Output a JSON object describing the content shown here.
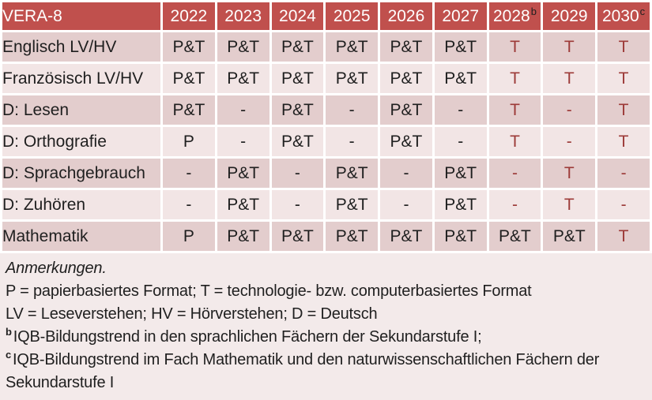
{
  "table": {
    "title": "VERA-8",
    "year_columns": [
      {
        "label": "2022",
        "superscript": ""
      },
      {
        "label": "2023",
        "superscript": ""
      },
      {
        "label": "2024",
        "superscript": ""
      },
      {
        "label": "2025",
        "superscript": ""
      },
      {
        "label": "2026",
        "superscript": ""
      },
      {
        "label": "2027",
        "superscript": ""
      },
      {
        "label": "2028",
        "superscript": "b"
      },
      {
        "label": "2029",
        "superscript": ""
      },
      {
        "label": "2030",
        "superscript": "c"
      }
    ],
    "rows": [
      {
        "label": "Englisch LV/HV",
        "cells": [
          {
            "text": "P&T",
            "highlight": false
          },
          {
            "text": "P&T",
            "highlight": false
          },
          {
            "text": "P&T",
            "highlight": false
          },
          {
            "text": "P&T",
            "highlight": false
          },
          {
            "text": "P&T",
            "highlight": false
          },
          {
            "text": "P&T",
            "highlight": false
          },
          {
            "text": "T",
            "highlight": true
          },
          {
            "text": "T",
            "highlight": true
          },
          {
            "text": "T",
            "highlight": true
          }
        ]
      },
      {
        "label": "Französisch LV/HV",
        "cells": [
          {
            "text": "P&T",
            "highlight": false
          },
          {
            "text": "P&T",
            "highlight": false
          },
          {
            "text": "P&T",
            "highlight": false
          },
          {
            "text": "P&T",
            "highlight": false
          },
          {
            "text": "P&T",
            "highlight": false
          },
          {
            "text": "P&T",
            "highlight": false
          },
          {
            "text": "T",
            "highlight": true
          },
          {
            "text": "T",
            "highlight": true
          },
          {
            "text": "T",
            "highlight": true
          }
        ]
      },
      {
        "label": "D: Lesen",
        "cells": [
          {
            "text": "P&T",
            "highlight": false
          },
          {
            "text": "-",
            "highlight": false
          },
          {
            "text": "P&T",
            "highlight": false
          },
          {
            "text": "-",
            "highlight": false
          },
          {
            "text": "P&T",
            "highlight": false
          },
          {
            "text": "-",
            "highlight": false
          },
          {
            "text": "T",
            "highlight": true
          },
          {
            "text": "-",
            "highlight": true
          },
          {
            "text": "T",
            "highlight": true
          }
        ]
      },
      {
        "label": "D: Orthografie",
        "cells": [
          {
            "text": "P",
            "highlight": false
          },
          {
            "text": "-",
            "highlight": false
          },
          {
            "text": "P&T",
            "highlight": false
          },
          {
            "text": "-",
            "highlight": false
          },
          {
            "text": "P&T",
            "highlight": false
          },
          {
            "text": "-",
            "highlight": false
          },
          {
            "text": "T",
            "highlight": true
          },
          {
            "text": "-",
            "highlight": true
          },
          {
            "text": "T",
            "highlight": true
          }
        ]
      },
      {
        "label": "D: Sprachgebrauch",
        "cells": [
          {
            "text": "-",
            "highlight": false
          },
          {
            "text": "P&T",
            "highlight": false
          },
          {
            "text": "-",
            "highlight": false
          },
          {
            "text": "P&T",
            "highlight": false
          },
          {
            "text": "-",
            "highlight": false
          },
          {
            "text": "P&T",
            "highlight": false
          },
          {
            "text": "-",
            "highlight": true
          },
          {
            "text": "T",
            "highlight": true
          },
          {
            "text": "-",
            "highlight": true
          }
        ]
      },
      {
        "label": "D: Zuhören",
        "cells": [
          {
            "text": "-",
            "highlight": false
          },
          {
            "text": "P&T",
            "highlight": false
          },
          {
            "text": "-",
            "highlight": false
          },
          {
            "text": "P&T",
            "highlight": false
          },
          {
            "text": "-",
            "highlight": false
          },
          {
            "text": "P&T",
            "highlight": false
          },
          {
            "text": "-",
            "highlight": true
          },
          {
            "text": "T",
            "highlight": true
          },
          {
            "text": "-",
            "highlight": true
          }
        ]
      },
      {
        "label": "Mathematik",
        "cells": [
          {
            "text": "P",
            "highlight": false
          },
          {
            "text": "P&T",
            "highlight": false
          },
          {
            "text": "P&T",
            "highlight": false
          },
          {
            "text": "P&T",
            "highlight": false
          },
          {
            "text": "P&T",
            "highlight": false
          },
          {
            "text": "P&T",
            "highlight": false
          },
          {
            "text": "P&T",
            "highlight": false
          },
          {
            "text": "P&T",
            "highlight": false
          },
          {
            "text": "T",
            "highlight": true
          }
        ]
      }
    ]
  },
  "notes": {
    "title": "Anmerkungen.",
    "formats": "P = papierbasiertes Format; T = technologie- bzw. computerbasiertes Format",
    "abbreviations": "LV = Leseverstehen; HV = Hörverstehen; D = Deutsch",
    "footnote_b": {
      "marker": "b",
      "text": "IQB-Bildungstrend in den sprachlichen Fächern der Sekundarstufe I;"
    },
    "footnote_c": {
      "marker": "c",
      "text": "IQB-Bildungstrend im Fach Mathematik und den naturwissenschaftlichen Fächern der Sekundarstufe I"
    }
  },
  "colors": {
    "header_bg": "#C0504D",
    "header_text": "#FFFFFF",
    "row_dark_bg": "#E3CDCD",
    "row_light_bg": "#F2E5E5",
    "notes_bg": "#F3EAEA",
    "accent_red_text": "#9C3A38",
    "cell_text": "#1F1F1F"
  }
}
